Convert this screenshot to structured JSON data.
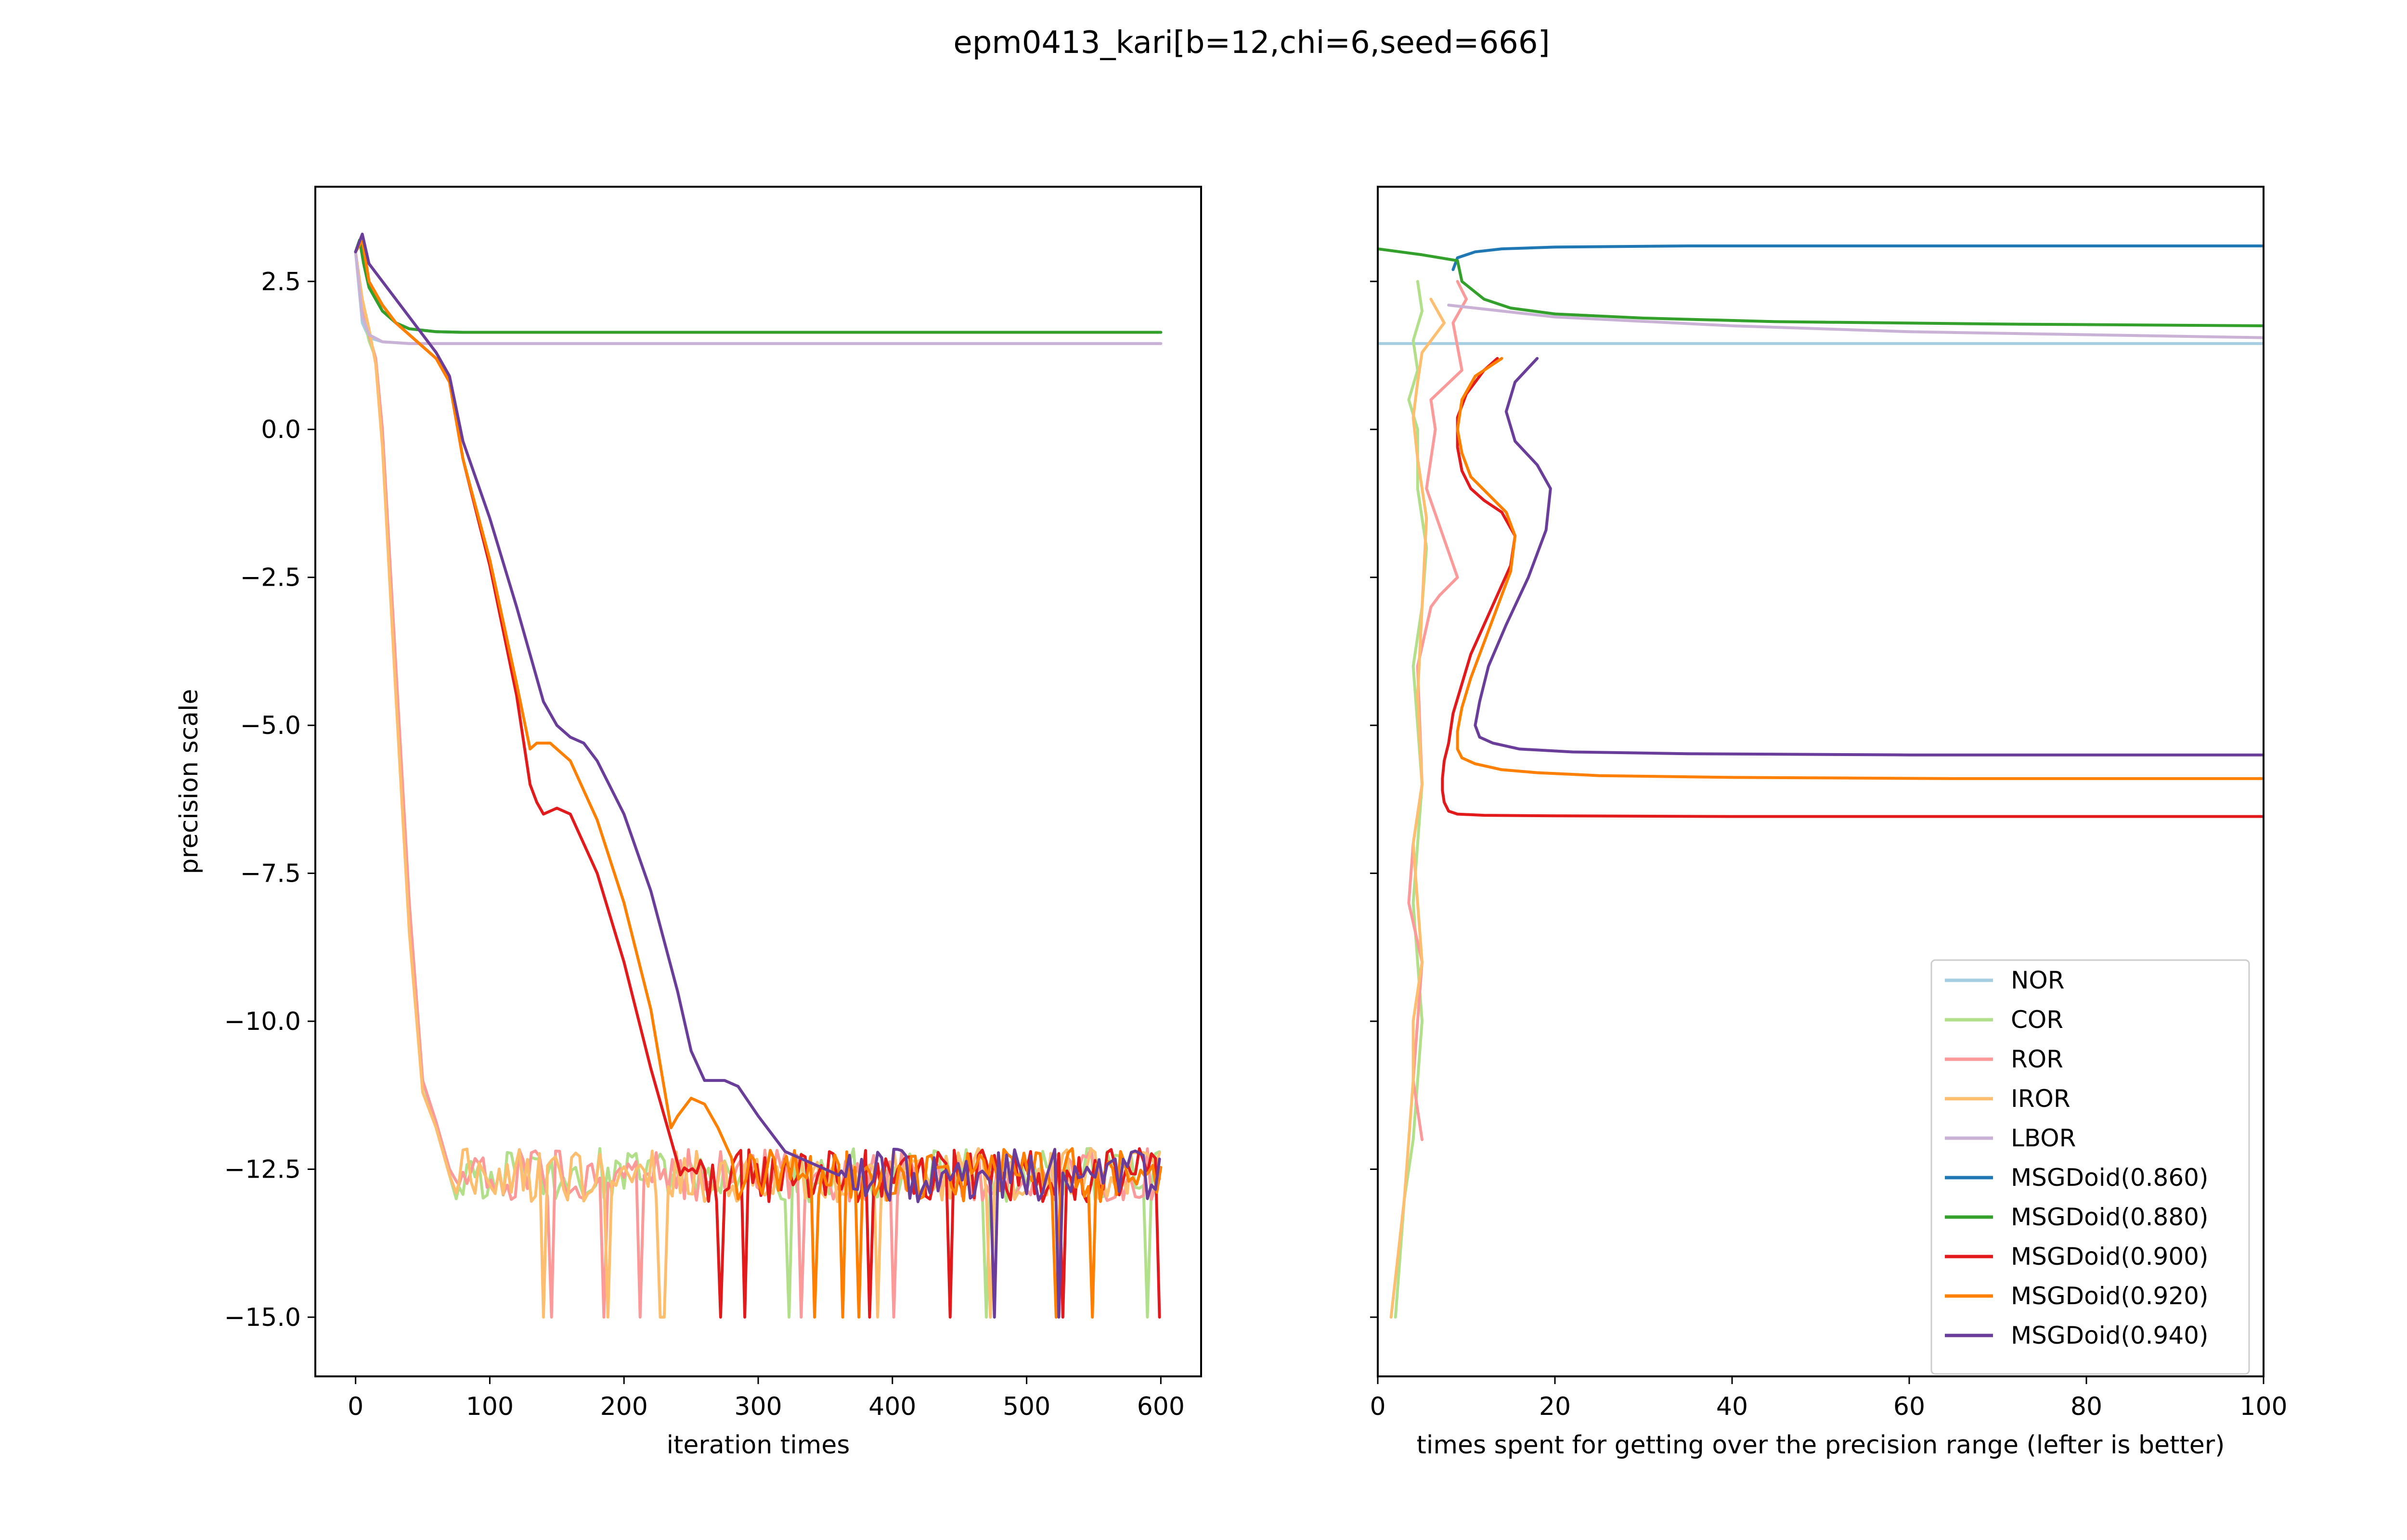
{
  "title": "epm0413_kari[b=12,chi=6,seed=666]",
  "legend_placement": "lower right (right panel)",
  "colors": {
    "NOR": "#a6cee3",
    "COR": "#b2df8a",
    "ROR": "#fb9a99",
    "IROR": "#fdbf6f",
    "LBOR": "#cab2d6",
    "MSGDoid(0.860)": "#1f78b4",
    "MSGDoid(0.880)": "#33a02c",
    "MSGDoid(0.900)": "#e31a1c",
    "MSGDoid(0.920)": "#ff7f00",
    "MSGDoid(0.940)": "#6a3d9a"
  },
  "chart_data": [
    {
      "type": "line",
      "panel": "left",
      "title": "",
      "xlabel": "iteration times",
      "ylabel": "precision scale",
      "xlim": [
        -30,
        630
      ],
      "ylim": [
        -16.0,
        4.1
      ],
      "xticks": [
        "0",
        "100",
        "200",
        "300",
        "400",
        "500",
        "600"
      ],
      "xtick_values": [
        0,
        100,
        200,
        300,
        400,
        500,
        600
      ],
      "yticks": [
        "2.5",
        "0.0",
        "−2.5",
        "−5.0",
        "−7.5",
        "−10.0",
        "−12.5",
        "−15.0"
      ],
      "ytick_values": [
        2.5,
        0.0,
        -2.5,
        -5.0,
        -7.5,
        -10.0,
        -12.5,
        -15.0
      ],
      "grid": false,
      "noise_floor": -12.6,
      "series": [
        {
          "name": "NOR",
          "x": [
            0,
            5,
            10,
            20,
            40,
            60,
            600
          ],
          "y": [
            3.0,
            1.8,
            1.55,
            1.48,
            1.45,
            1.45,
            1.45
          ]
        },
        {
          "name": "COR",
          "x": [
            0,
            5,
            10,
            15,
            20,
            30,
            40,
            50,
            60,
            65,
            70,
            75
          ],
          "y": [
            3.0,
            2.0,
            1.5,
            1.2,
            0.0,
            -4.0,
            -8.0,
            -11.0,
            -11.8,
            -12.2,
            -12.6,
            -13.0
          ]
        },
        {
          "name": "ROR",
          "x": [
            0,
            5,
            10,
            15,
            20,
            30,
            40,
            50,
            60,
            65,
            70,
            75
          ],
          "y": [
            3.0,
            2.1,
            1.6,
            1.2,
            0.0,
            -4.0,
            -8.0,
            -11.0,
            -11.7,
            -12.1,
            -12.5,
            -12.7
          ]
        },
        {
          "name": "IROR",
          "x": [
            0,
            5,
            10,
            15,
            20,
            30,
            40,
            50,
            60,
            65,
            70,
            75
          ],
          "y": [
            3.0,
            2.2,
            1.7,
            1.1,
            -0.3,
            -4.5,
            -8.5,
            -11.2,
            -11.8,
            -12.2,
            -12.6,
            -12.9
          ]
        },
        {
          "name": "LBOR",
          "x": [
            0,
            5,
            10,
            20,
            40,
            600
          ],
          "y": [
            3.0,
            1.9,
            1.6,
            1.48,
            1.45,
            1.45
          ]
        },
        {
          "name": "MSGDoid(0.860)",
          "x": [
            0,
            3,
            6,
            10,
            20,
            30,
            40,
            60,
            80,
            600
          ],
          "y": [
            3.0,
            3.2,
            2.8,
            2.4,
            2.0,
            1.8,
            1.7,
            1.65,
            1.64,
            1.64
          ]
        },
        {
          "name": "MSGDoid(0.880)",
          "x": [
            0,
            3,
            6,
            10,
            20,
            30,
            40,
            60,
            80,
            600
          ],
          "y": [
            3.0,
            3.2,
            2.8,
            2.4,
            2.0,
            1.8,
            1.7,
            1.65,
            1.64,
            1.64
          ]
        },
        {
          "name": "MSGDoid(0.900)",
          "x": [
            0,
            5,
            10,
            20,
            30,
            40,
            50,
            60,
            70,
            80,
            100,
            120,
            130,
            135,
            140,
            150,
            160,
            180,
            200,
            220,
            235,
            240
          ],
          "y": [
            3.0,
            3.2,
            2.5,
            2.1,
            1.8,
            1.6,
            1.4,
            1.2,
            0.8,
            -0.5,
            -2.3,
            -4.5,
            -6.0,
            -6.3,
            -6.5,
            -6.4,
            -6.5,
            -7.5,
            -9.0,
            -10.8,
            -12.0,
            -12.4
          ]
        },
        {
          "name": "MSGDoid(0.920)",
          "x": [
            0,
            5,
            10,
            20,
            30,
            40,
            50,
            60,
            70,
            80,
            100,
            120,
            130,
            135,
            145,
            160,
            180,
            200,
            220,
            235,
            240,
            250,
            260,
            270,
            280
          ],
          "y": [
            3.0,
            3.2,
            2.5,
            2.1,
            1.8,
            1.6,
            1.4,
            1.2,
            0.8,
            -0.5,
            -2.2,
            -4.3,
            -5.4,
            -5.3,
            -5.3,
            -5.6,
            -6.6,
            -8.0,
            -9.8,
            -11.8,
            -11.6,
            -11.3,
            -11.4,
            -11.8,
            -12.3
          ]
        },
        {
          "name": "MSGDoid(0.940)",
          "x": [
            0,
            5,
            10,
            20,
            30,
            40,
            50,
            60,
            70,
            80,
            100,
            120,
            140,
            150,
            160,
            170,
            180,
            200,
            220,
            240,
            250,
            260,
            270,
            275,
            285,
            300,
            320,
            340,
            360
          ],
          "y": [
            3.0,
            3.3,
            2.8,
            2.5,
            2.2,
            1.9,
            1.6,
            1.3,
            0.9,
            -0.2,
            -1.5,
            -3.0,
            -4.6,
            -5.0,
            -5.2,
            -5.3,
            -5.6,
            -6.5,
            -7.8,
            -9.5,
            -10.5,
            -11.0,
            -11.0,
            -11.0,
            -11.1,
            -11.6,
            -12.2,
            -12.4,
            -12.6
          ]
        }
      ]
    },
    {
      "type": "line",
      "panel": "right",
      "title": "",
      "xlabel": "times spent for getting over the precision range (lefter is better)",
      "ylabel": "",
      "xlim": [
        0,
        100
      ],
      "ylim": [
        -16.0,
        4.1
      ],
      "xticks": [
        "0",
        "20",
        "40",
        "60",
        "80",
        "100"
      ],
      "xtick_values": [
        0,
        20,
        40,
        60,
        80,
        100
      ],
      "ytick_values": [
        2.5,
        0.0,
        -2.5,
        -5.0,
        -7.5,
        -10.0,
        -12.5,
        -15.0
      ],
      "grid": false,
      "series": [
        {
          "name": "NOR",
          "x": [
            0,
            100
          ],
          "y": [
            1.45,
            1.45
          ]
        },
        {
          "name": "COR",
          "x": [
            4.5,
            5.0,
            4.0,
            4.5,
            3.5,
            4.5,
            4.5,
            5.5,
            5.0,
            4.0,
            4.5,
            5.0,
            4.5,
            4.0,
            4.5,
            5.0,
            4.5,
            4.0,
            3.0,
            2.0
          ],
          "y": [
            2.5,
            2.0,
            1.5,
            1.0,
            0.5,
            0.0,
            -1.0,
            -2.0,
            -3.0,
            -4.0,
            -5.0,
            -6.0,
            -7.0,
            -8.0,
            -9.0,
            -10.0,
            -11.0,
            -12.0,
            -13.0,
            -15.0
          ]
        },
        {
          "name": "ROR",
          "x": [
            9.0,
            10.0,
            8.5,
            9.5,
            6.0,
            6.5,
            5.5,
            9.0,
            7.0,
            6.0,
            4.5,
            5.0,
            4.0,
            3.5,
            5.0,
            4.5,
            4.0,
            5.0
          ],
          "y": [
            2.5,
            2.2,
            1.8,
            1.0,
            0.5,
            0.0,
            -1.0,
            -2.5,
            -2.8,
            -3.0,
            -4.0,
            -6.0,
            -7.0,
            -8.0,
            -9.0,
            -10.0,
            -11.0,
            -12.0
          ]
        },
        {
          "name": "IROR",
          "x": [
            6.0,
            7.5,
            5.0,
            4.5,
            4.0,
            4.5,
            5.5,
            5.0,
            4.5,
            5.0,
            4.0,
            4.5,
            5.0,
            4.0,
            4.0,
            3.5,
            3.0,
            1.5
          ],
          "y": [
            2.2,
            1.8,
            1.3,
            0.8,
            0.2,
            -0.5,
            -1.5,
            -3.0,
            -4.5,
            -6.0,
            -7.0,
            -8.0,
            -9.0,
            -10.0,
            -11.0,
            -12.0,
            -13.0,
            -15.0
          ]
        },
        {
          "name": "LBOR",
          "x": [
            8,
            20,
            40,
            60,
            80,
            100
          ],
          "y": [
            2.1,
            1.9,
            1.75,
            1.65,
            1.6,
            1.55
          ]
        },
        {
          "name": "MSGDoid(0.860)",
          "x": [
            8.5,
            9.0,
            11,
            14,
            20,
            35,
            60,
            100
          ],
          "y": [
            2.7,
            2.9,
            3.0,
            3.05,
            3.08,
            3.1,
            3.1,
            3.1
          ]
        },
        {
          "name": "MSGDoid(0.880)",
          "x": [
            0,
            5,
            9,
            9.5,
            12,
            15,
            20,
            30,
            45,
            70,
            100
          ],
          "y": [
            3.05,
            2.95,
            2.85,
            2.5,
            2.2,
            2.05,
            1.95,
            1.88,
            1.82,
            1.78,
            1.75
          ]
        },
        {
          "name": "MSGDoid(0.900)",
          "x": [
            13.5,
            12,
            10,
            9,
            9,
            9.5,
            10.5,
            12,
            14,
            15.5,
            15,
            13.5,
            12,
            10.5,
            9.5,
            8.5,
            8,
            7.5,
            7.3,
            7.3,
            7.5,
            8,
            9,
            12,
            20,
            40,
            70,
            100
          ],
          "y": [
            1.2,
            1.0,
            0.6,
            0.2,
            -0.3,
            -0.7,
            -1.0,
            -1.2,
            -1.4,
            -1.8,
            -2.3,
            -2.8,
            -3.3,
            -3.8,
            -4.3,
            -4.8,
            -5.3,
            -5.6,
            -5.9,
            -6.1,
            -6.3,
            -6.45,
            -6.5,
            -6.52,
            -6.53,
            -6.54,
            -6.54,
            -6.54
          ]
        },
        {
          "name": "MSGDoid(0.920)",
          "x": [
            14,
            11,
            9.5,
            9,
            9.5,
            10.5,
            12.5,
            14.5,
            15.5,
            15,
            13.5,
            12,
            10.5,
            9.5,
            9,
            9,
            9.5,
            11,
            14,
            18,
            25,
            40,
            65,
            100
          ],
          "y": [
            1.2,
            0.9,
            0.5,
            0.0,
            -0.4,
            -0.8,
            -1.1,
            -1.4,
            -1.8,
            -2.4,
            -3.0,
            -3.6,
            -4.2,
            -4.7,
            -5.1,
            -5.4,
            -5.55,
            -5.65,
            -5.75,
            -5.8,
            -5.85,
            -5.88,
            -5.9,
            -5.9
          ]
        },
        {
          "name": "MSGDoid(0.940)",
          "x": [
            18,
            15.5,
            14.5,
            15.5,
            18,
            19.5,
            19,
            17,
            14.5,
            12.5,
            11.5,
            11,
            11.5,
            13,
            16,
            22,
            35,
            60,
            100
          ],
          "y": [
            1.2,
            0.8,
            0.3,
            -0.2,
            -0.6,
            -1.0,
            -1.7,
            -2.5,
            -3.3,
            -4.0,
            -4.6,
            -5.0,
            -5.2,
            -5.3,
            -5.4,
            -5.45,
            -5.48,
            -5.5,
            -5.5
          ]
        }
      ]
    }
  ]
}
